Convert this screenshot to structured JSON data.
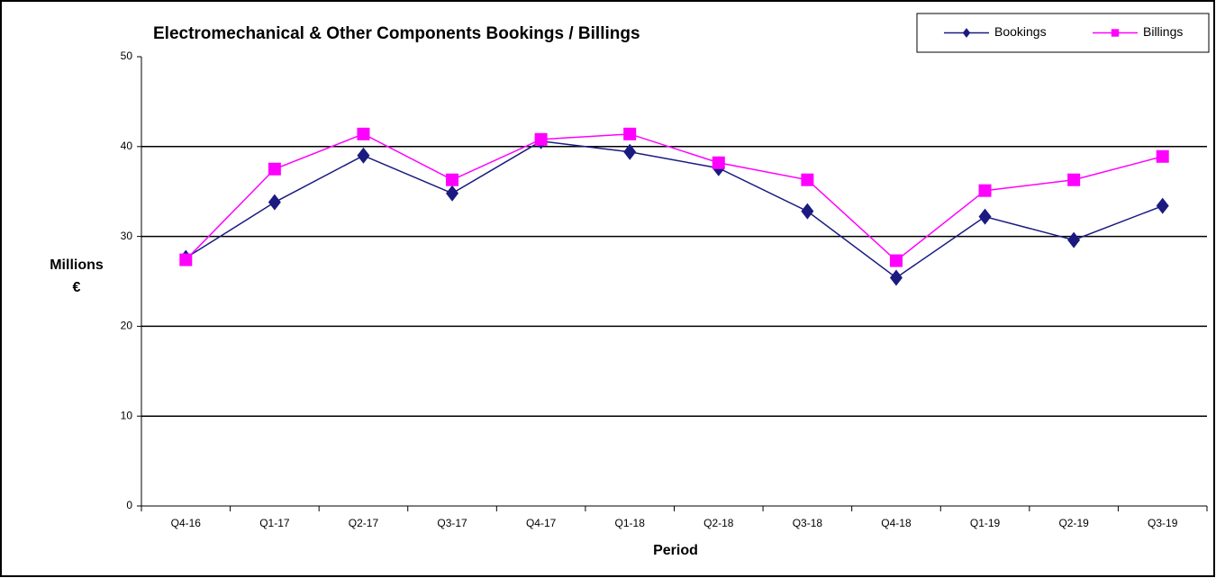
{
  "chart_data": {
    "type": "line",
    "title": "Electromechanical & Other Components Bookings / Billings",
    "xlabel": "Period",
    "ylabel": [
      "Millions",
      "€"
    ],
    "categories": [
      "Q4-16",
      "Q1-17",
      "Q2-17",
      "Q3-17",
      "Q4-17",
      "Q1-18",
      "Q2-18",
      "Q3-18",
      "Q4-18",
      "Q1-19",
      "Q2-19",
      "Q3-19"
    ],
    "series": [
      {
        "name": "Bookings",
        "color": "#1a1a80",
        "marker": "diamond",
        "values": [
          27.6,
          33.8,
          39.0,
          34.8,
          40.6,
          39.4,
          37.6,
          32.8,
          25.4,
          32.2,
          29.6,
          33.4
        ]
      },
      {
        "name": "Billings",
        "color": "#ff00ff",
        "marker": "square",
        "values": [
          27.4,
          37.5,
          41.4,
          36.3,
          40.8,
          41.4,
          38.2,
          36.3,
          27.3,
          35.1,
          36.3,
          38.9
        ]
      }
    ],
    "ylim": [
      0,
      50
    ],
    "yticks": [
      0,
      10,
      20,
      30,
      40,
      50
    ],
    "grid": true,
    "legend": "top-right"
  }
}
